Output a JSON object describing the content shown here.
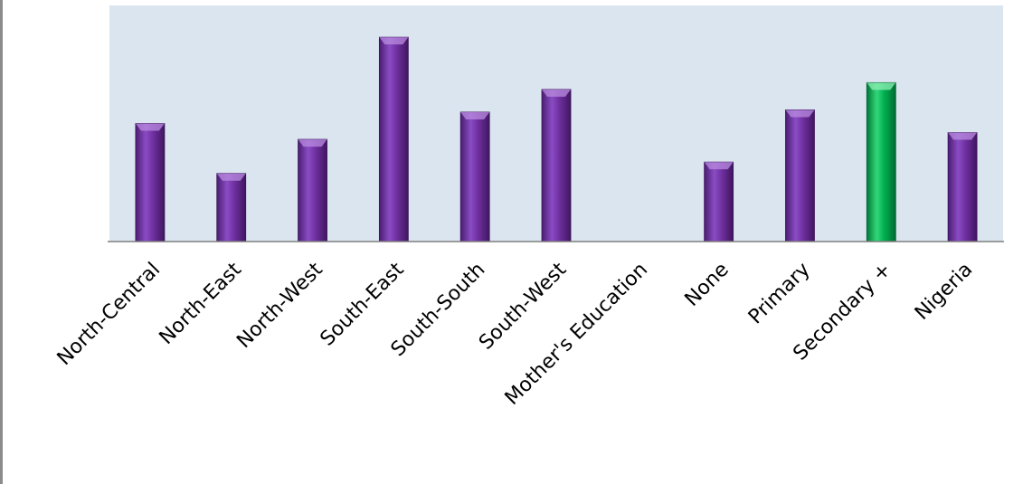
{
  "chart_data": {
    "type": "bar",
    "categories": [
      "North-Central",
      "North-East",
      "North-West",
      "South-East",
      "South-South",
      "South-West",
      "Mother's Education",
      "None",
      "Primary",
      "Secondary +",
      "Nigeria"
    ],
    "values": [
      52,
      30,
      45,
      90,
      57,
      67,
      null,
      35,
      58,
      70,
      48
    ],
    "ylim": [
      0,
      104
    ],
    "grid": false,
    "legend": "none",
    "colors": {
      "plot_background": "#dbe5f0",
      "bar_default": "#7030a0",
      "bar_highlight": "#00b050",
      "axis": "#7f7f7f"
    },
    "highlight_category": "Secondary +"
  }
}
